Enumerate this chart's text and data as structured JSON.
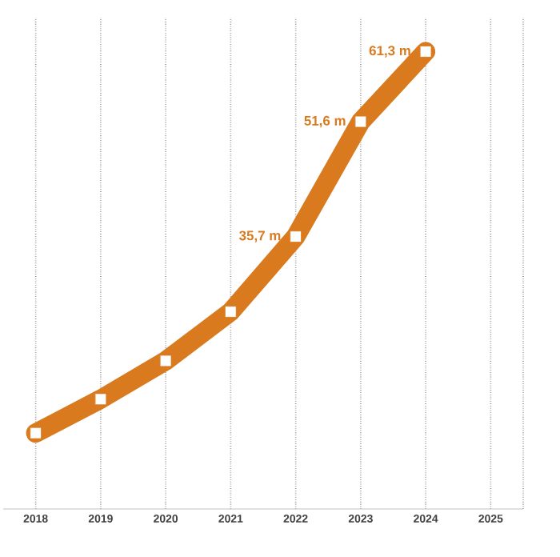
{
  "chart_data": {
    "type": "line",
    "categories": [
      "2018",
      "2019",
      "2020",
      "2021",
      "2022",
      "2023",
      "2024",
      "2025"
    ],
    "series": [
      {
        "color": "#d97a1e",
        "values": [
          8.5,
          13.2,
          18.5,
          25.3,
          35.7,
          51.6,
          61.3,
          null
        ],
        "value_labels": [
          null,
          null,
          null,
          null,
          "35,7 m",
          "51,6 m",
          "61,3 m",
          null
        ]
      }
    ],
    "ylim": [
      -2,
      66
    ],
    "tick_labels": "x",
    "grid": "x",
    "marker": "square",
    "line_style": "solid"
  }
}
